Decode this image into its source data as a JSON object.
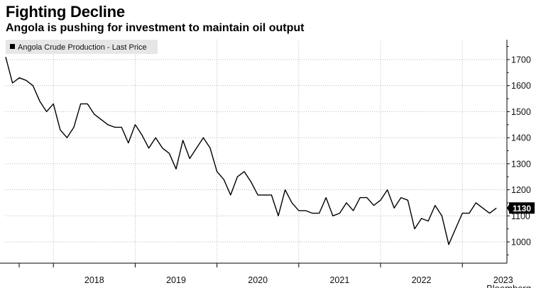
{
  "header": {
    "title": "Fighting Decline",
    "subtitle": "Angola is pushing for investment to maintain oil output"
  },
  "source": "Bloomberg",
  "chart_data": {
    "type": "line",
    "title": "Fighting Decline",
    "subtitle": "Angola is pushing for investment to maintain oil output",
    "series": [
      {
        "name": "Angola Crude Production - Last Price",
        "color": "#000000",
        "start": "2017-06",
        "frequency": "monthly",
        "values": [
          1710,
          1610,
          1630,
          1620,
          1600,
          1540,
          1500,
          1530,
          1430,
          1400,
          1440,
          1530,
          1530,
          1490,
          1470,
          1450,
          1440,
          1440,
          1380,
          1450,
          1410,
          1360,
          1400,
          1360,
          1340,
          1280,
          1390,
          1320,
          1360,
          1400,
          1360,
          1270,
          1240,
          1180,
          1250,
          1270,
          1230,
          1180,
          1180,
          1180,
          1100,
          1200,
          1150,
          1120,
          1120,
          1110,
          1110,
          1170,
          1100,
          1110,
          1150,
          1120,
          1170,
          1170,
          1140,
          1160,
          1200,
          1130,
          1170,
          1160,
          1050,
          1090,
          1080,
          1140,
          1100,
          990,
          1050,
          1110,
          1110,
          1150,
          1130,
          1110,
          1130
        ]
      }
    ],
    "last_value": "1130",
    "x_tick_labels": [
      "2018",
      "2019",
      "2020",
      "2021",
      "2022",
      "2023"
    ],
    "y_ticks": [
      1000,
      1100,
      1200,
      1300,
      1400,
      1500,
      1600,
      1700
    ],
    "ylim": [
      915,
      1765
    ],
    "xlim_months": [
      0,
      75
    ],
    "grid": true,
    "legend": "top-left",
    "xlabel": "",
    "ylabel": ""
  }
}
